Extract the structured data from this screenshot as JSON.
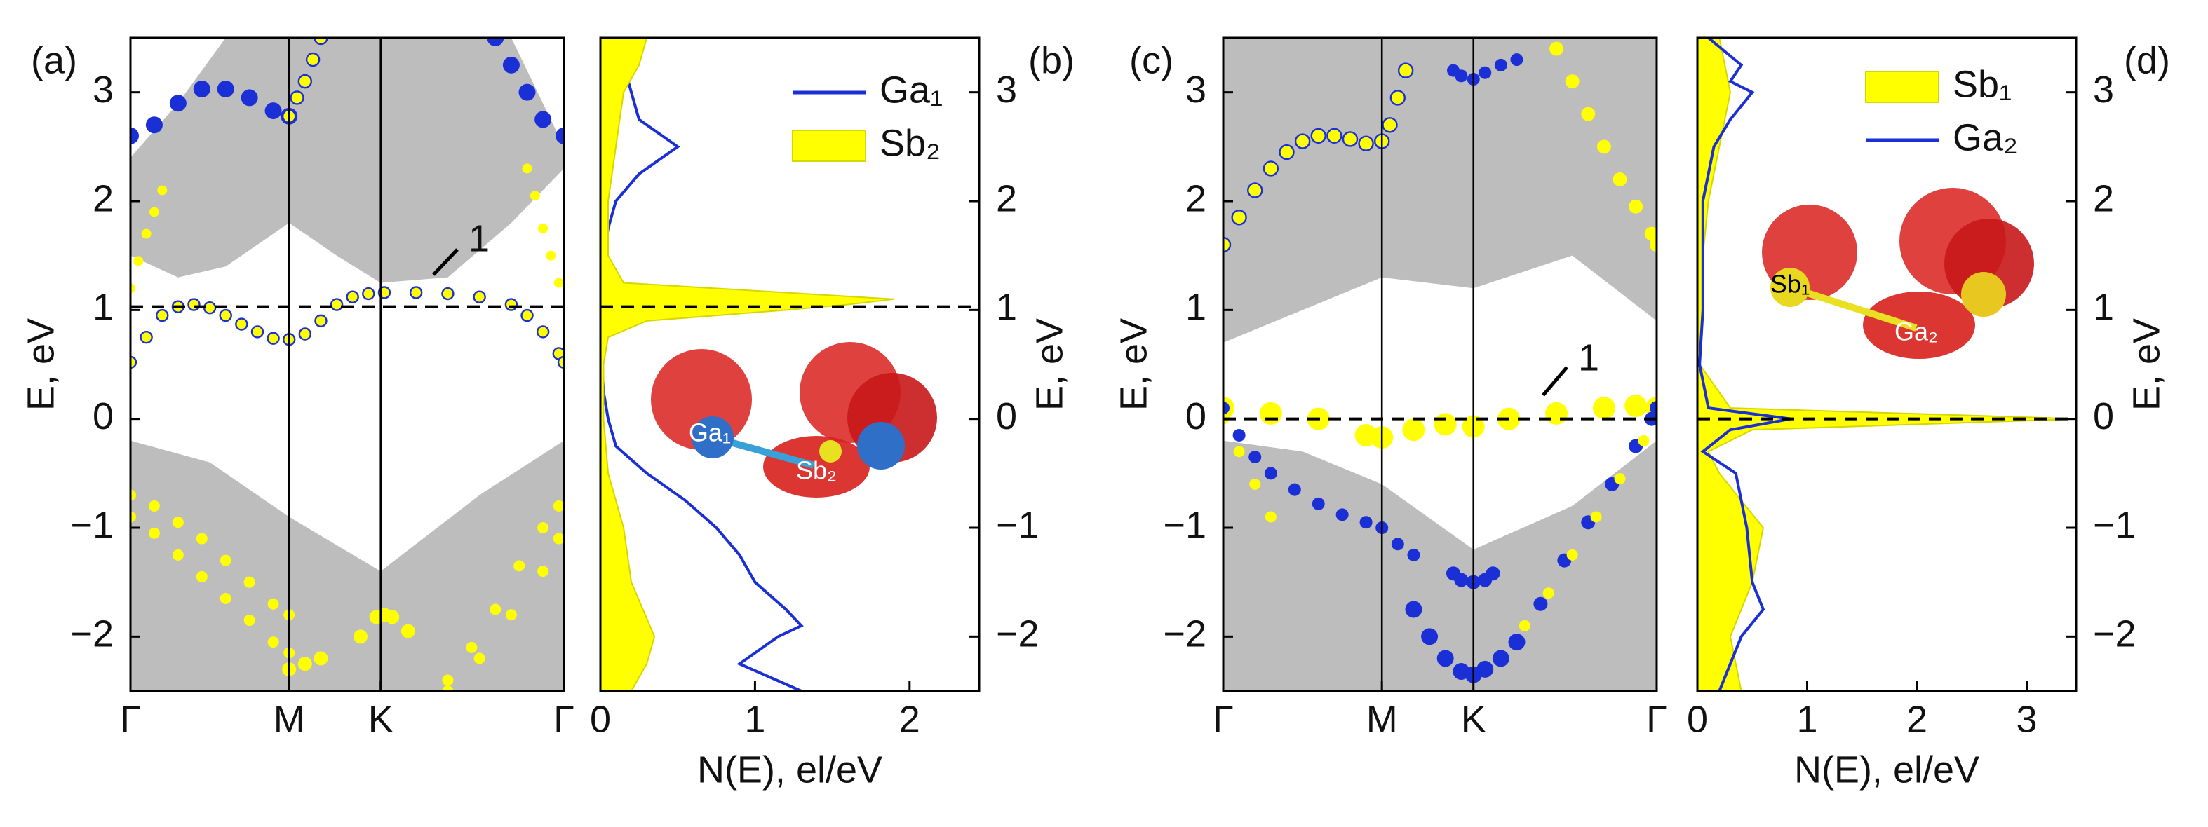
{
  "chart_data": [
    {
      "type": "band",
      "panel_label": "(a)",
      "ylabel": "E, eV",
      "yaxis_side": "left",
      "xlim": [
        0,
        2.732
      ],
      "xticks": [
        {
          "value": 0,
          "label": "Γ"
        },
        {
          "value": 1,
          "label": "M"
        },
        {
          "value": 1.577,
          "label": "K"
        },
        {
          "value": 2.732,
          "label": "Γ"
        }
      ],
      "ylim": [
        -2.5,
        3.5
      ],
      "yticks": [
        {
          "value": -2,
          "label": "−2"
        },
        {
          "value": -1,
          "label": "−1"
        },
        0,
        1,
        2,
        3
      ],
      "fermi": 1.03,
      "annotation": "1",
      "bulk": [
        {
          "x": [
            0,
            0.3,
            0.6,
            1.0,
            1.3,
            1.577,
            2.0,
            2.4,
            2.732
          ],
          "lower": [
            1.5,
            1.3,
            1.4,
            1.8,
            1.5,
            1.25,
            1.3,
            1.8,
            2.3
          ],
          "upper": [
            2.4,
            2.9,
            3.5,
            3.5,
            3.5,
            3.5,
            3.5,
            3.5,
            2.5
          ]
        },
        {
          "x": [
            0,
            0.5,
            1.0,
            1.577,
            2.2,
            2.732
          ],
          "lower": [
            -2.5,
            -2.5,
            -2.5,
            -2.5,
            -2.5,
            -2.5
          ],
          "upper": [
            -0.2,
            -0.4,
            -0.9,
            -1.4,
            -0.7,
            -0.2
          ]
        }
      ],
      "series": [
        {
          "color": "#1a2fd6",
          "size": 6,
          "x": [
            0,
            0.15,
            0.3,
            0.45,
            0.6,
            0.75,
            0.9,
            1.0
          ],
          "y": [
            2.6,
            2.7,
            2.9,
            3.03,
            3.03,
            2.95,
            2.83,
            2.78
          ]
        },
        {
          "color": "#ffff00",
          "edge": "#1a2fd6",
          "size": 4.5,
          "x": [
            1.0,
            1.05,
            1.1,
            1.15,
            1.2
          ],
          "y": [
            2.78,
            2.95,
            3.1,
            3.3,
            3.5
          ]
        },
        {
          "color": "#1a2fd6",
          "size": 6,
          "x": [
            2.3,
            2.4,
            2.5,
            2.6,
            2.732
          ],
          "y": [
            3.5,
            3.25,
            3.0,
            2.75,
            2.6
          ]
        },
        {
          "color": "#ffff00",
          "edge": "#1a2fd6",
          "size": 4,
          "x": [
            0,
            0.1,
            0.2,
            0.3,
            0.4,
            0.5,
            0.6,
            0.7,
            0.8,
            0.9,
            1.0,
            1.1,
            1.2,
            1.3,
            1.4,
            1.5,
            1.6,
            1.8,
            2.0,
            2.2,
            2.4,
            2.5,
            2.6,
            2.7,
            2.732
          ],
          "y": [
            0.52,
            0.75,
            0.95,
            1.03,
            1.05,
            1.02,
            0.95,
            0.87,
            0.8,
            0.74,
            0.73,
            0.78,
            0.9,
            1.05,
            1.12,
            1.15,
            1.16,
            1.16,
            1.15,
            1.12,
            1.05,
            0.95,
            0.8,
            0.6,
            0.52
          ]
        },
        {
          "color": "#ffff00",
          "size": 3.5,
          "x": [
            0,
            0.05,
            0.1,
            0.15,
            0.2
          ],
          "y": [
            1.2,
            1.45,
            1.7,
            1.9,
            2.1
          ]
        },
        {
          "color": "#ffff00",
          "size": 3.5,
          "x": [
            2.5,
            2.55,
            2.6,
            2.65,
            2.7
          ],
          "y": [
            2.3,
            2.05,
            1.75,
            1.5,
            1.25
          ]
        },
        {
          "color": "#ffff00",
          "size": 4,
          "x": [
            0,
            0.15,
            0.3,
            0.45,
            0.6,
            0.75,
            0.9,
            1.0
          ],
          "y": [
            -0.7,
            -0.8,
            -0.95,
            -1.1,
            -1.3,
            -1.5,
            -1.7,
            -1.8
          ]
        },
        {
          "color": "#ffff00",
          "size": 4,
          "x": [
            0,
            0.15,
            0.3,
            0.45,
            0.6,
            0.75,
            0.9,
            1.0
          ],
          "y": [
            -0.9,
            -1.05,
            -1.25,
            -1.45,
            -1.65,
            -1.85,
            -2.05,
            -2.15
          ]
        },
        {
          "color": "#ffff00",
          "size": 5,
          "x": [
            1.0,
            1.1,
            1.2
          ],
          "y": [
            -2.3,
            -2.25,
            -2.2
          ]
        },
        {
          "color": "#ffff00",
          "size": 5,
          "x": [
            1.45,
            1.55,
            1.6,
            1.65,
            1.75
          ],
          "y": [
            -2.0,
            -1.82,
            -1.8,
            -1.82,
            -1.95
          ]
        },
        {
          "color": "#ffff00",
          "size": 4,
          "x": [
            2.0,
            2.15,
            2.3,
            2.45,
            2.6,
            2.7
          ],
          "y": [
            -2.4,
            -2.1,
            -1.75,
            -1.35,
            -1.0,
            -0.8
          ]
        },
        {
          "color": "#ffff00",
          "size": 4,
          "x": [
            2.0,
            2.2,
            2.4,
            2.6,
            2.7
          ],
          "y": [
            -2.5,
            -2.2,
            -1.8,
            -1.4,
            -1.1
          ]
        }
      ]
    },
    {
      "type": "dos",
      "panel_label": "(b)",
      "ylabel": "E, eV",
      "yaxis_side": "right",
      "xlabel": "N(E), el/eV",
      "xlim": [
        0,
        2.45
      ],
      "xticks": [
        0,
        1,
        2
      ],
      "ylim": [
        -2.5,
        3.5
      ],
      "yticks": [
        {
          "value": -2,
          "label": "−2"
        },
        {
          "value": -1,
          "label": "−1"
        },
        0,
        1,
        2,
        3
      ],
      "fermi": 1.03,
      "legend": "upper right",
      "inset_labels": [
        "Ga₁",
        "Sb₂"
      ],
      "series": [
        {
          "name": "Ga₁",
          "color": "#1a2fd6",
          "style": "line",
          "E": [
            3.5,
            3.25,
            3.0,
            2.75,
            2.5,
            2.25,
            2.0,
            1.75,
            1.5,
            1.25,
            1.1,
            1.05,
            1.0,
            0.9,
            0.75,
            0.5,
            0.25,
            0,
            -0.25,
            -0.5,
            -0.75,
            -1.0,
            -1.25,
            -1.5,
            -1.75,
            -1.9,
            -2.0,
            -2.25,
            -2.5
          ],
          "values": [
            0.1,
            0.15,
            0.2,
            0.25,
            0.5,
            0.25,
            0.1,
            0.05,
            0.02,
            0.05,
            1.0,
            1.3,
            0.8,
            0.2,
            0.02,
            0.01,
            0.02,
            0.05,
            0.1,
            0.3,
            0.55,
            0.75,
            0.9,
            1.0,
            1.2,
            1.3,
            1.15,
            0.9,
            1.3
          ]
        },
        {
          "name": "Sb₂",
          "color": "#ffff00",
          "style": "area",
          "E": [
            3.5,
            3.25,
            3.0,
            2.5,
            2.0,
            1.5,
            1.25,
            1.1,
            1.05,
            1.0,
            0.9,
            0.75,
            0.5,
            0,
            -0.5,
            -0.75,
            -1.0,
            -1.5,
            -2.0,
            -2.25,
            -2.5
          ],
          "values": [
            0.3,
            0.25,
            0.15,
            0.1,
            0.05,
            0.05,
            0.15,
            1.9,
            1.6,
            1.2,
            0.3,
            0.05,
            0.02,
            0.02,
            0.05,
            0.1,
            0.15,
            0.2,
            0.35,
            0.3,
            0.2
          ]
        }
      ]
    },
    {
      "type": "band",
      "panel_label": "(c)",
      "ylabel": "E, eV",
      "yaxis_side": "left",
      "xlim": [
        0,
        2.732
      ],
      "xticks": [
        {
          "value": 0,
          "label": "Γ"
        },
        {
          "value": 1,
          "label": "M"
        },
        {
          "value": 1.577,
          "label": "K"
        },
        {
          "value": 2.732,
          "label": "Γ"
        }
      ],
      "ylim": [
        -2.5,
        3.5
      ],
      "yticks": [
        {
          "value": -2,
          "label": "−2"
        },
        {
          "value": -1,
          "label": "−1"
        },
        0,
        1,
        2,
        3
      ],
      "fermi": 0,
      "annotation": "1",
      "bulk": [
        {
          "x": [
            0,
            0.5,
            1.0,
            1.577,
            2.2,
            2.732
          ],
          "lower": [
            0.7,
            1.0,
            1.3,
            1.2,
            1.5,
            0.9
          ],
          "upper": [
            3.5,
            3.5,
            3.5,
            3.5,
            3.5,
            3.5
          ]
        },
        {
          "x": [
            0,
            0.5,
            1.0,
            1.577,
            2.2,
            2.732
          ],
          "lower": [
            -2.5,
            -2.5,
            -2.5,
            -2.5,
            -2.5,
            -2.5
          ],
          "upper": [
            -0.2,
            -0.3,
            -0.6,
            -1.2,
            -0.8,
            -0.2
          ]
        }
      ],
      "series": [
        {
          "color": "#1a2fd6",
          "size": 4.5,
          "x": [
            1.45,
            1.5,
            1.577,
            1.65,
            1.75,
            1.85
          ],
          "y": [
            3.2,
            3.15,
            3.12,
            3.18,
            3.25,
            3.3
          ]
        },
        {
          "color": "#ffff00",
          "edge": "#1a2fd6",
          "size": 5,
          "x": [
            0,
            0.1,
            0.2,
            0.3,
            0.4,
            0.5,
            0.6,
            0.7,
            0.8,
            0.9,
            1.0,
            1.05,
            1.1,
            1.15
          ],
          "y": [
            1.6,
            1.85,
            2.1,
            2.3,
            2.45,
            2.55,
            2.6,
            2.6,
            2.57,
            2.53,
            2.55,
            2.7,
            2.95,
            3.2
          ]
        },
        {
          "color": "#ffff00",
          "size": 5,
          "x": [
            2.1,
            2.2,
            2.3,
            2.4,
            2.5,
            2.6,
            2.7,
            2.732
          ],
          "y": [
            3.4,
            3.1,
            2.8,
            2.5,
            2.2,
            1.95,
            1.7,
            1.6
          ]
        },
        {
          "color": "#ffff00",
          "size": 8,
          "x": [
            0,
            0.3,
            0.6,
            0.9,
            1.0,
            1.2,
            1.4,
            1.577,
            1.8,
            2.1,
            2.4,
            2.6,
            2.732
          ],
          "y": [
            0.1,
            0.05,
            0,
            -0.15,
            -0.17,
            -0.1,
            -0.05,
            -0.07,
            0,
            0.05,
            0.1,
            0.12,
            0.1
          ]
        },
        {
          "color": "#1a2fd6",
          "size": 4.5,
          "x": [
            0,
            0.1,
            0.2,
            0.3,
            0.45,
            0.6,
            0.75,
            0.9,
            1.0,
            1.1,
            1.2
          ],
          "y": [
            0.1,
            -0.15,
            -0.35,
            -0.5,
            -0.65,
            -0.78,
            -0.88,
            -0.95,
            -1.0,
            -1.15,
            -1.25
          ]
        },
        {
          "color": "#ffff00",
          "size": 4,
          "x": [
            0,
            0.1,
            0.2,
            0.3
          ],
          "y": [
            0,
            -0.3,
            -0.6,
            -0.9
          ]
        },
        {
          "color": "#1a2fd6",
          "size": 5,
          "x": [
            1.45,
            1.5,
            1.577,
            1.65,
            1.7
          ],
          "y": [
            -1.42,
            -1.48,
            -1.5,
            -1.48,
            -1.42
          ]
        },
        {
          "color": "#1a2fd6",
          "size": 6,
          "x": [
            1.2,
            1.3,
            1.4,
            1.5,
            1.577,
            1.65,
            1.75,
            1.85
          ],
          "y": [
            -1.75,
            -2.0,
            -2.2,
            -2.32,
            -2.35,
            -2.3,
            -2.2,
            -2.05
          ]
        },
        {
          "color": "#1a2fd6",
          "size": 5,
          "x": [
            1.85,
            2.0,
            2.15,
            2.3,
            2.45,
            2.6,
            2.7,
            2.732
          ],
          "y": [
            -2.05,
            -1.7,
            -1.3,
            -0.95,
            -0.6,
            -0.25,
            0,
            0.1
          ]
        },
        {
          "color": "#ffff00",
          "size": 4,
          "x": [
            1.9,
            2.05,
            2.2,
            2.35,
            2.5,
            2.65
          ],
          "y": [
            -1.9,
            -1.6,
            -1.25,
            -0.9,
            -0.55,
            -0.2
          ]
        }
      ]
    },
    {
      "type": "dos",
      "panel_label": "(d)",
      "ylabel": "E, eV",
      "yaxis_side": "right",
      "xlabel": "N(E), el/eV",
      "xlim": [
        0,
        3.45
      ],
      "xticks": [
        0,
        1,
        2,
        3
      ],
      "ylim": [
        -2.5,
        3.5
      ],
      "yticks": [
        {
          "value": -2,
          "label": "−2"
        },
        {
          "value": -1,
          "label": "−1"
        },
        0,
        1,
        2,
        3
      ],
      "fermi": 0,
      "legend": "upper right",
      "inset_labels": [
        "Sb₁",
        "Ga₂"
      ],
      "series": [
        {
          "name": "Sb₁",
          "color": "#ffff00",
          "style": "area",
          "E": [
            3.5,
            3.0,
            2.5,
            2.0,
            1.5,
            1.0,
            0.5,
            0.1,
            0,
            -0.1,
            -0.3,
            -0.5,
            -1.0,
            -1.5,
            -2.0,
            -2.5
          ],
          "values": [
            0.2,
            0.3,
            0.2,
            0.1,
            0.05,
            0.05,
            0.02,
            0.3,
            3.5,
            0.5,
            0.1,
            0.2,
            0.6,
            0.5,
            0.3,
            0.4
          ]
        },
        {
          "name": "Ga₂",
          "color": "#1a2fd6",
          "style": "line",
          "E": [
            3.5,
            3.25,
            3.1,
            3.0,
            2.75,
            2.5,
            2.0,
            1.5,
            1.0,
            0.5,
            0.1,
            0,
            -0.1,
            -0.3,
            -0.5,
            -1.0,
            -1.5,
            -1.75,
            -2.0,
            -2.5
          ],
          "values": [
            0.1,
            0.4,
            0.3,
            0.5,
            0.3,
            0.15,
            0.05,
            0.05,
            0.05,
            0.02,
            0.1,
            0.85,
            0.3,
            0.05,
            0.35,
            0.45,
            0.5,
            0.6,
            0.4,
            0.2
          ]
        }
      ]
    }
  ]
}
